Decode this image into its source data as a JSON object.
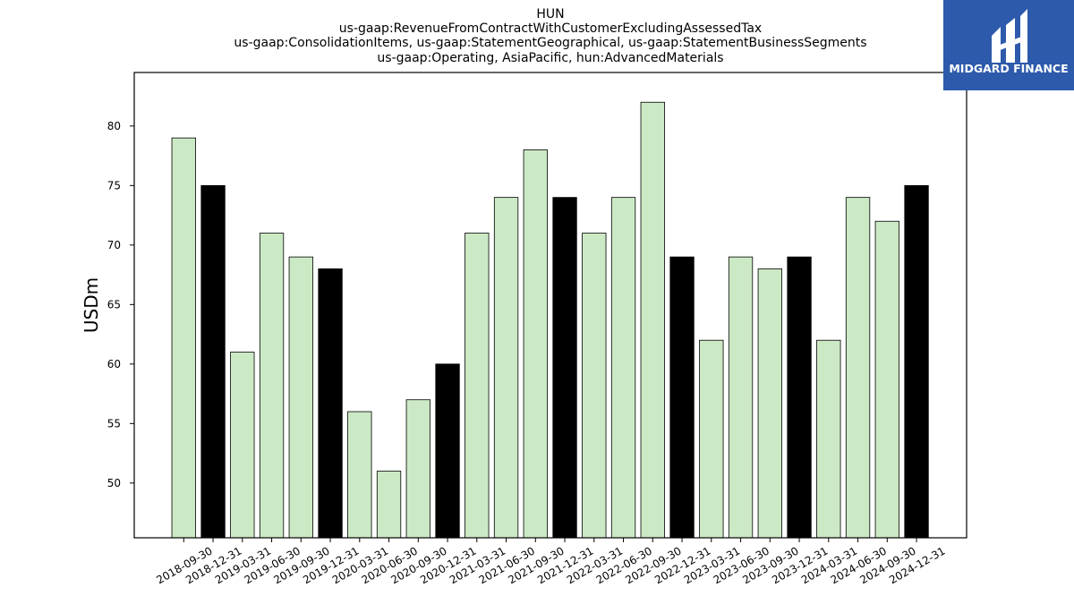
{
  "chart_data": {
    "type": "bar",
    "title_lines": [
      "HUN",
      "us-gaap:RevenueFromContractWithCustomerExcludingAssessedTax",
      "us-gaap:ConsolidationItems, us-gaap:StatementGeographical, us-gaap:StatementBusinessSegments",
      "us-gaap:Operating, AsiaPacific, hun:AdvancedMaterials"
    ],
    "xlabel": "",
    "ylabel": "USDm",
    "ylim": [
      45.4,
      84.5
    ],
    "yticks": [
      50,
      55,
      60,
      65,
      70,
      75,
      80
    ],
    "grid": false,
    "categories": [
      "2018-09-30",
      "2018-12-31",
      "2019-03-31",
      "2019-06-30",
      "2019-09-30",
      "2019-12-31",
      "2020-03-31",
      "2020-06-30",
      "2020-09-30",
      "2020-12-31",
      "2021-03-31",
      "2021-06-30",
      "2021-09-30",
      "2021-12-31",
      "2022-03-31",
      "2022-06-30",
      "2022-09-30",
      "2022-12-31",
      "2023-03-31",
      "2023-06-30",
      "2023-09-30",
      "2023-12-31",
      "2024-03-31",
      "2024-06-30",
      "2024-09-30",
      "2024-12-31"
    ],
    "values": [
      79,
      75,
      61,
      71,
      69,
      68,
      56,
      51,
      57,
      60,
      71,
      74,
      78,
      74,
      71,
      74,
      82,
      69,
      62,
      69,
      68,
      69,
      62,
      74,
      72,
      75
    ],
    "colors": {
      "quarter": "#cce9c5",
      "year_end": "#000000",
      "edge": "#000000"
    }
  },
  "logo": {
    "text": "MIDGARD FINANCE",
    "background": "#2d5aab"
  }
}
